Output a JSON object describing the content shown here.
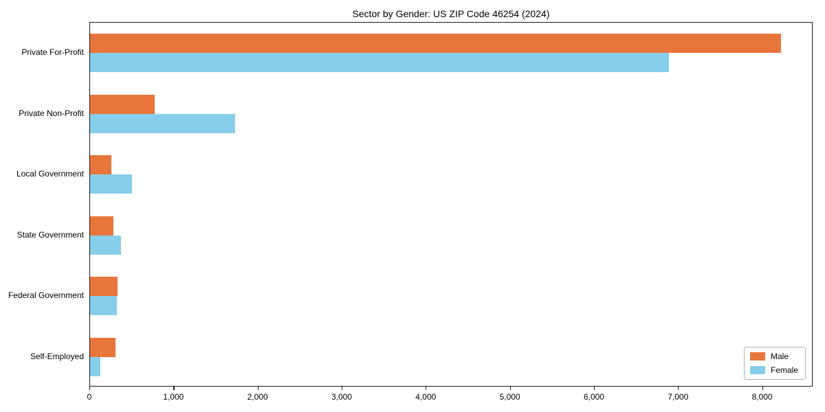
{
  "title": "Sector by Gender: US ZIP Code 46254 (2024)",
  "chart_data": {
    "type": "bar",
    "orientation": "horizontal",
    "title": "Sector by Gender: US ZIP Code 46254 (2024)",
    "categories": [
      "Private For-Profit",
      "Private Non-Profit",
      "Local Government",
      "State Government",
      "Federal Government",
      "Self-Employed"
    ],
    "series": [
      {
        "name": "Male",
        "color": "#e8763b",
        "edge_color": "#c95f28",
        "values": [
          8230,
          770,
          250,
          280,
          330,
          300
        ]
      },
      {
        "name": "Female",
        "color": "#87ceeb",
        "edge_color": "#6cb8d8",
        "values": [
          6900,
          1730,
          500,
          370,
          320,
          120
        ]
      }
    ],
    "xlabel": "",
    "ylabel": "",
    "xlim": [
      0,
      8600
    ],
    "x_ticks": [
      0,
      1000,
      2000,
      3000,
      4000,
      5000,
      6000,
      7000,
      8000
    ],
    "x_tick_labels": [
      "0",
      "1,000",
      "2,000",
      "3,000",
      "4,000",
      "5,000",
      "6,000",
      "7,000",
      "8,000"
    ],
    "grid": false,
    "legend_position": "lower right",
    "legend": [
      {
        "label": "Male",
        "color": "#e8763b"
      },
      {
        "label": "Female",
        "color": "#87ceeb"
      }
    ]
  }
}
